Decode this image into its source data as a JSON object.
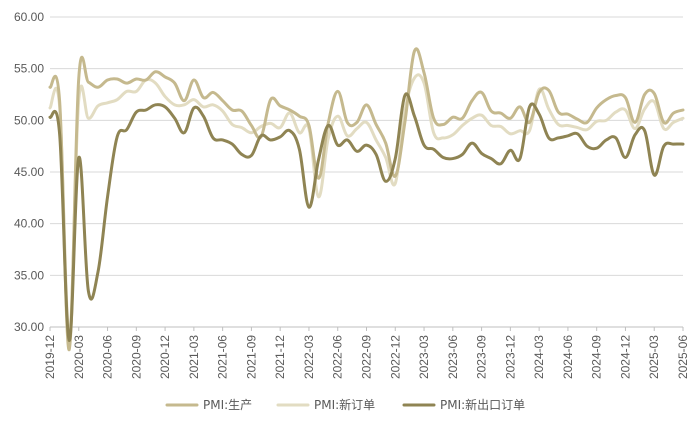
{
  "chart_data": {
    "type": "line",
    "title": "",
    "xlabel": "",
    "ylabel": "",
    "ylim": [
      30,
      60
    ],
    "y_ticks": [
      "30.00",
      "35.00",
      "40.00",
      "45.00",
      "50.00",
      "55.00",
      "60.00"
    ],
    "y_tick_values": [
      30,
      35,
      40,
      45,
      50,
      55,
      60
    ],
    "x_ticks": [
      "2019-12",
      "2020-03",
      "2020-06",
      "2020-09",
      "2020-12",
      "2021-03",
      "2021-06",
      "2021-09",
      "2021-12",
      "2022-03",
      "2022-06",
      "2022-09",
      "2022-12",
      "2023-03",
      "2023-06",
      "2023-09",
      "2023-12",
      "2024-03",
      "2024-06",
      "2024-09",
      "2024-12",
      "2025-03",
      "2025-06"
    ],
    "grid": "horizontal",
    "legend_position": "bottom",
    "series": [
      {
        "name": "PMI:生产",
        "color": "#c5b98e",
        "values": [
          53.2,
          51.9,
          27.8,
          54.1,
          53.7,
          53.2,
          53.9,
          54.0,
          53.6,
          54.0,
          53.9,
          54.7,
          54.2,
          53.6,
          51.9,
          53.9,
          52.2,
          52.7,
          51.9,
          51.0,
          50.9,
          49.5,
          48.4,
          52.0,
          51.4,
          51.0,
          50.4,
          49.5,
          44.4,
          49.7,
          52.8,
          49.8,
          49.8,
          51.5,
          49.6,
          47.8,
          44.6,
          49.8,
          56.7,
          54.6,
          50.2,
          49.6,
          50.3,
          50.2,
          51.9,
          52.7,
          50.9,
          50.7,
          50.2,
          51.3,
          49.8,
          52.7,
          52.9,
          50.8,
          50.6,
          50.1,
          49.8,
          51.2,
          52.0,
          52.4,
          52.2,
          49.8,
          52.5,
          52.6,
          49.8,
          50.7,
          51.0
        ]
      },
      {
        "name": "PMI:新订单",
        "color": "#e2dcc2",
        "values": [
          51.2,
          51.4,
          29.3,
          52.0,
          50.2,
          51.4,
          51.7,
          52.0,
          52.8,
          52.8,
          53.9,
          53.6,
          52.3,
          51.5,
          51.5,
          52.0,
          51.3,
          51.5,
          50.9,
          49.6,
          49.3,
          48.8,
          49.4,
          49.7,
          49.3,
          50.7,
          48.8,
          49.2,
          42.6,
          48.2,
          50.4,
          48.5,
          49.2,
          49.8,
          48.1,
          46.4,
          43.9,
          50.9,
          54.1,
          53.6,
          48.8,
          48.3,
          48.6,
          49.5,
          50.2,
          50.5,
          49.5,
          49.4,
          48.7,
          49.0,
          49.0,
          53.0,
          51.1,
          49.6,
          49.5,
          49.3,
          49.1,
          49.9,
          50.0,
          50.8,
          51.0,
          49.2,
          51.1,
          51.8,
          49.2,
          49.8,
          50.2
        ]
      },
      {
        "name": "PMI:新出口订单",
        "color": "#8f8453",
        "values": [
          50.3,
          48.7,
          28.7,
          46.4,
          33.5,
          35.3,
          42.6,
          48.4,
          49.1,
          50.8,
          51.0,
          51.5,
          51.3,
          50.2,
          48.8,
          51.2,
          50.4,
          48.3,
          48.1,
          47.7,
          46.7,
          46.6,
          48.5,
          48.1,
          48.4,
          49.0,
          47.2,
          41.6,
          46.2,
          49.5,
          47.6,
          48.1,
          47.0,
          47.6,
          46.7,
          44.1,
          46.3,
          52.4,
          50.4,
          47.6,
          47.2,
          46.4,
          46.3,
          46.7,
          47.8,
          46.8,
          46.3,
          45.8,
          47.1,
          46.3,
          51.3,
          50.6,
          48.3,
          48.3,
          48.5,
          48.7,
          47.5,
          47.3,
          48.1,
          48.3,
          46.4,
          48.6,
          49.0,
          44.7,
          47.5,
          47.7,
          47.7
        ]
      }
    ]
  },
  "legend": {
    "items": [
      "PMI:生产",
      "PMI:新订单",
      "PMI:新出口订单"
    ]
  }
}
